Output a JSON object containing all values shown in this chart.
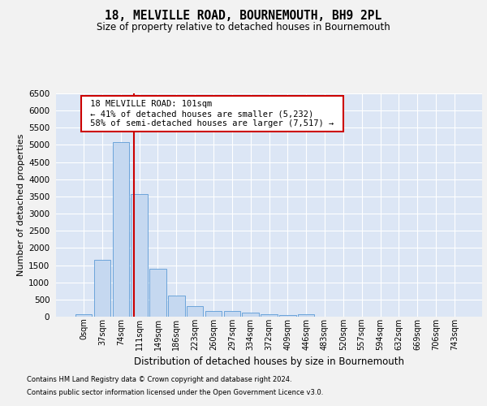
{
  "title": "18, MELVILLE ROAD, BOURNEMOUTH, BH9 2PL",
  "subtitle": "Size of property relative to detached houses in Bournemouth",
  "xlabel": "Distribution of detached houses by size in Bournemouth",
  "ylabel": "Number of detached properties",
  "footer_line1": "Contains HM Land Registry data © Crown copyright and database right 2024.",
  "footer_line2": "Contains public sector information licensed under the Open Government Licence v3.0.",
  "bar_labels": [
    "0sqm",
    "37sqm",
    "74sqm",
    "111sqm",
    "149sqm",
    "186sqm",
    "223sqm",
    "260sqm",
    "297sqm",
    "334sqm",
    "372sqm",
    "409sqm",
    "446sqm",
    "483sqm",
    "520sqm",
    "557sqm",
    "594sqm",
    "632sqm",
    "669sqm",
    "706sqm",
    "743sqm"
  ],
  "bar_values": [
    70,
    1650,
    5080,
    3580,
    1390,
    620,
    300,
    175,
    155,
    110,
    75,
    55,
    70,
    0,
    0,
    0,
    0,
    0,
    0,
    0,
    0
  ],
  "bar_color": "#c5d8f0",
  "bar_edge_color": "#5c9bd6",
  "ylim_max": 6500,
  "yticks": [
    0,
    500,
    1000,
    1500,
    2000,
    2500,
    3000,
    3500,
    4000,
    4500,
    5000,
    5500,
    6000,
    6500
  ],
  "property_label": "18 MELVILLE ROAD: 101sqm",
  "pct_smaller_label": "← 41% of detached houses are smaller (5,232)",
  "pct_larger_label": "58% of semi-detached houses are larger (7,517) →",
  "vline_x": 2.73,
  "bg_color": "#dce6f5",
  "grid_color": "#ffffff",
  "fig_bg_color": "#f2f2f2",
  "annot_box_color": "#ffffff",
  "annot_border_color": "#cc0000",
  "title_fontsize": 10.5,
  "subtitle_fontsize": 8.5,
  "ylabel_fontsize": 8,
  "xlabel_fontsize": 8.5,
  "tick_fontsize": 7.5,
  "xtick_fontsize": 7,
  "annot_fontsize": 7.5,
  "footer_fontsize": 6
}
